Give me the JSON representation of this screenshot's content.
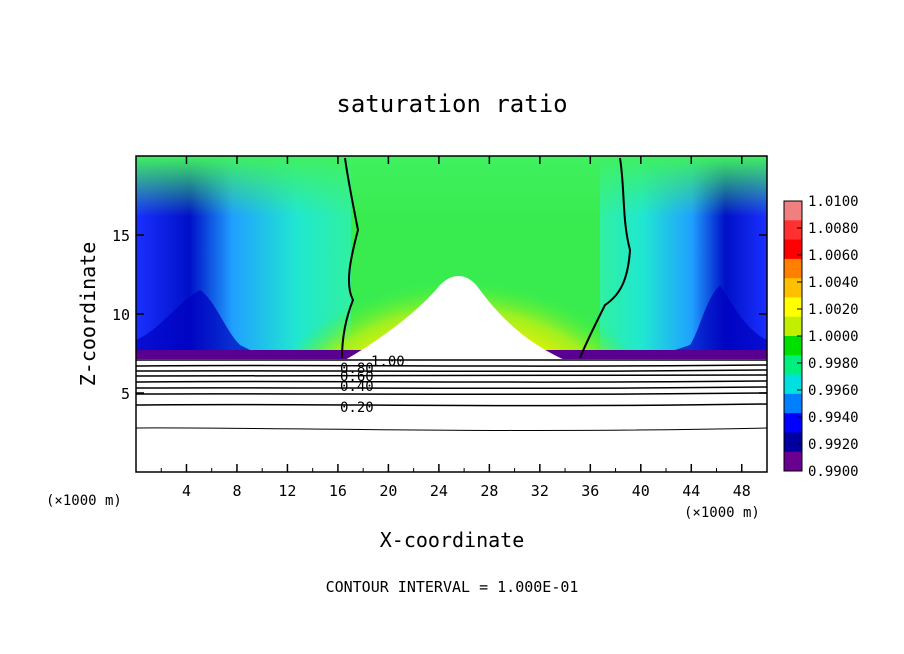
{
  "chart_data": {
    "type": "heatmap",
    "title": "saturation ratio",
    "xlabel": "X-coordinate",
    "ylabel": "Z-coordinate",
    "x_unit": "(×1000 m)",
    "z_unit": "(×1000 m)",
    "footer": "CONTOUR INTERVAL = 1.000E-01",
    "xlim": [
      0,
      50
    ],
    "ylim": [
      0,
      20
    ],
    "x_ticks": [
      "4",
      "8",
      "12",
      "16",
      "20",
      "24",
      "28",
      "32",
      "36",
      "40",
      "44",
      "48"
    ],
    "y_ticks": [
      "5",
      "10",
      "15"
    ],
    "colorbar": {
      "labels": [
        "1.0100",
        "1.0080",
        "1.0060",
        "1.0040",
        "1.0020",
        "1.0000",
        "0.9980",
        "0.9960",
        "0.9940",
        "0.9920",
        "0.9900"
      ],
      "colors": [
        "#f08080",
        "#ff3030",
        "#ff0000",
        "#ff8000",
        "#ffc000",
        "#ffff00",
        "#c0f000",
        "#00e000",
        "#00f080",
        "#00e0e0",
        "#0080ff",
        "#0000ff",
        "#0000a0",
        "#6a0090"
      ]
    },
    "contour_labels": [
      "1.00",
      "0.80",
      "0.60",
      "0.40",
      "0.20"
    ]
  }
}
